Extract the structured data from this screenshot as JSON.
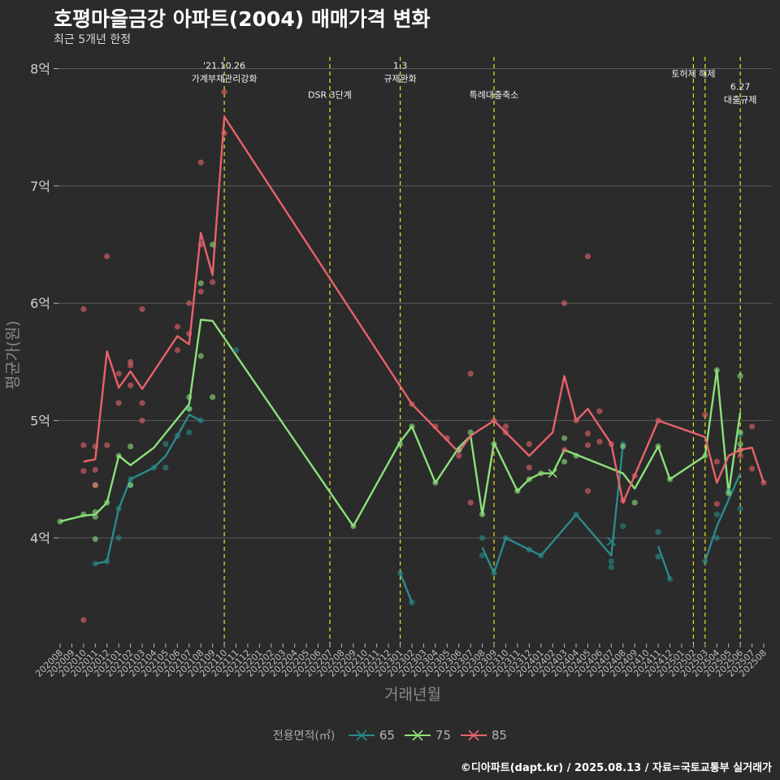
{
  "title": "호평마을금강 아파트(2004) 매매가격 변화",
  "subtitle": "최근 5개년 한정",
  "caption": "©디아파트(dapt.kr) / 2025.08.13 / 자료=국토교통부 실거래가",
  "legend": {
    "title": "전용면적(㎡)",
    "items": [
      {
        "label": "65",
        "color": "#2a8a8a"
      },
      {
        "label": "75",
        "color": "#8ce07a"
      },
      {
        "label": "85",
        "color": "#e8626a"
      }
    ]
  },
  "chart_data": {
    "type": "line",
    "xlabel": "거래년월",
    "ylabel": "평균가(원)",
    "ylim": [
      3.1,
      8.1
    ],
    "yticks": [
      4,
      5,
      6,
      7,
      8
    ],
    "ytick_labels": [
      "4억",
      "5억",
      "6억",
      "7억",
      "8억"
    ],
    "grid": true,
    "legend_position": "bottom",
    "x": [
      "202008",
      "202009",
      "202010",
      "202011",
      "202012",
      "202101",
      "202102",
      "202103",
      "202104",
      "202105",
      "202106",
      "202107",
      "202108",
      "202109",
      "202110",
      "202111",
      "202112",
      "202201",
      "202202",
      "202203",
      "202204",
      "202205",
      "202206",
      "202207",
      "202208",
      "202209",
      "202210",
      "202211",
      "202212",
      "202301",
      "202302",
      "202303",
      "202304",
      "202305",
      "202306",
      "202307",
      "202308",
      "202309",
      "202310",
      "202311",
      "202312",
      "202401",
      "202402",
      "202403",
      "202404",
      "202405",
      "202406",
      "202407",
      "202408",
      "202409",
      "202410",
      "202411",
      "202412",
      "202501",
      "202502",
      "202503",
      "202504",
      "202505",
      "202506",
      "202507",
      "202508"
    ],
    "events": [
      {
        "x": "202110",
        "label": "'21.10.26\n가계부채관리강화",
        "label_y": 8.0
      },
      {
        "x": "202207",
        "label": "DSR 3단계",
        "label_y": 7.75
      },
      {
        "x": "202301",
        "label": "1.3\n규제완화",
        "label_y": 8.0
      },
      {
        "x": "202309",
        "label": "특례대출축소",
        "label_y": 7.75
      },
      {
        "x": "202502",
        "label": "토허제 해제",
        "label_y": 7.93
      },
      {
        "x": "202503",
        "label": "",
        "label_y": 7.93
      },
      {
        "x": "202506",
        "label": "6.27\n대출규제",
        "label_y": 7.82
      }
    ],
    "series": [
      {
        "name": "65",
        "color": "#2a8a8a",
        "line": [
          [
            [
              "202011",
              3.78
            ],
            [
              "202012",
              3.8
            ],
            [
              "202101",
              4.25
            ],
            [
              "202102",
              4.5
            ],
            [
              "202104",
              4.6
            ],
            [
              "202105",
              4.7
            ],
            [
              "202106",
              4.87
            ],
            [
              "202107",
              5.05
            ],
            [
              "202108",
              5.0
            ]
          ],
          [
            [
              "202301",
              3.7
            ],
            [
              "202302",
              3.45
            ]
          ],
          [
            [
              "202308",
              3.92
            ],
            [
              "202309",
              3.7
            ],
            [
              "202310",
              4.0
            ],
            [
              "202312",
              3.9
            ],
            [
              "202401",
              3.85
            ],
            [
              "202404",
              4.2
            ],
            [
              "202407",
              3.85
            ],
            [
              "202408",
              4.8
            ]
          ],
          [
            [
              "202411",
              3.93
            ],
            [
              "202412",
              3.65
            ]
          ],
          [
            [
              "202503",
              3.8
            ],
            [
              "202504",
              4.1
            ],
            [
              "202506",
              4.55
            ]
          ]
        ],
        "points": [
          [
            "202011",
            3.78
          ],
          [
            "202012",
            3.8
          ],
          [
            "202101",
            4.0
          ],
          [
            "202101",
            4.25
          ],
          [
            "202102",
            4.45
          ],
          [
            "202102",
            4.5
          ],
          [
            "202104",
            4.6
          ],
          [
            "202105",
            4.8
          ],
          [
            "202105",
            4.6
          ],
          [
            "202106",
            4.87
          ],
          [
            "202107",
            5.1
          ],
          [
            "202107",
            4.9
          ],
          [
            "202108",
            5.0
          ],
          [
            "202111",
            5.6
          ],
          [
            "202301",
            3.7
          ],
          [
            "202302",
            3.45
          ],
          [
            "202308",
            4.0
          ],
          [
            "202308",
            3.85
          ],
          [
            "202309",
            3.7
          ],
          [
            "202310",
            4.0
          ],
          [
            "202312",
            3.9
          ],
          [
            "202401",
            3.85
          ],
          [
            "202404",
            4.2
          ],
          [
            "202407",
            3.8
          ],
          [
            "202407",
            3.75
          ],
          [
            "202408",
            4.1
          ],
          [
            "202408",
            4.8
          ],
          [
            "202411",
            3.84
          ],
          [
            "202411",
            4.05
          ],
          [
            "202412",
            3.65
          ],
          [
            "202503",
            3.8
          ],
          [
            "202504",
            4.0
          ],
          [
            "202504",
            4.2
          ],
          [
            "202506",
            4.25
          ],
          [
            "202506",
            4.88
          ],
          [
            "202505",
            4.4
          ]
        ],
        "markers": [
          [
            "202407",
            3.97
          ]
        ]
      },
      {
        "name": "75",
        "color": "#8ce07a",
        "line": [
          [
            [
              "202008",
              4.14
            ],
            [
              "202010",
              4.19
            ],
            [
              "202011",
              4.2
            ],
            [
              "202012",
              4.3
            ],
            [
              "202101",
              4.7
            ],
            [
              "202102",
              4.62
            ],
            [
              "202104",
              4.77
            ],
            [
              "202107",
              5.14
            ],
            [
              "202108",
              5.86
            ],
            [
              "202109",
              5.85
            ],
            [
              "202209",
              4.1
            ],
            [
              "202301",
              4.82
            ],
            [
              "202302",
              4.95
            ],
            [
              "202304",
              4.47
            ],
            [
              "202306",
              4.77
            ],
            [
              "202307",
              4.87
            ],
            [
              "202308",
              4.2
            ],
            [
              "202309",
              4.81
            ],
            [
              "202311",
              4.4
            ],
            [
              "202312",
              4.5
            ],
            [
              "202401",
              4.55
            ],
            [
              "202402",
              4.55
            ],
            [
              "202403",
              4.75
            ],
            [
              "202408",
              4.55
            ],
            [
              "202409",
              4.42
            ],
            [
              "202411",
              4.78
            ],
            [
              "202412",
              4.5
            ],
            [
              "202503",
              4.7
            ],
            [
              "202504",
              5.43
            ],
            [
              "202505",
              4.38
            ],
            [
              "202506",
              5.07
            ]
          ]
        ],
        "points": [
          [
            "202008",
            4.14
          ],
          [
            "202010",
            4.2
          ],
          [
            "202011",
            4.22
          ],
          [
            "202011",
            4.18
          ],
          [
            "202011",
            4.45
          ],
          [
            "202011",
            3.99
          ],
          [
            "202012",
            4.3
          ],
          [
            "202101",
            4.7
          ],
          [
            "202102",
            4.78
          ],
          [
            "202102",
            4.45
          ],
          [
            "202107",
            5.2
          ],
          [
            "202107",
            5.1
          ],
          [
            "202108",
            5.55
          ],
          [
            "202108",
            6.17
          ],
          [
            "202109",
            6.5
          ],
          [
            "202109",
            5.2
          ],
          [
            "202209",
            4.1
          ],
          [
            "202301",
            4.8
          ],
          [
            "202302",
            4.95
          ],
          [
            "202304",
            4.47
          ],
          [
            "202306",
            4.75
          ],
          [
            "202307",
            4.9
          ],
          [
            "202308",
            4.2
          ],
          [
            "202309",
            4.8
          ],
          [
            "202311",
            4.4
          ],
          [
            "202312",
            4.5
          ],
          [
            "202401",
            4.55
          ],
          [
            "202403",
            4.65
          ],
          [
            "202403",
            4.85
          ],
          [
            "202404",
            4.7
          ],
          [
            "202408",
            4.78
          ],
          [
            "202409",
            4.3
          ],
          [
            "202411",
            4.78
          ],
          [
            "202412",
            4.5
          ],
          [
            "202503",
            4.7
          ],
          [
            "202504",
            5.43
          ],
          [
            "202505",
            4.38
          ],
          [
            "202506",
            5.38
          ],
          [
            "202506",
            4.8
          ],
          [
            "202506",
            4.75
          ],
          [
            "202506",
            4.9
          ]
        ],
        "markers": [
          [
            "202402",
            4.55
          ]
        ]
      },
      {
        "name": "85",
        "color": "#e8626a",
        "line": [
          [
            [
              "202010",
              4.65
            ],
            [
              "202011",
              4.67
            ],
            [
              "202012",
              5.59
            ],
            [
              "202101",
              5.28
            ],
            [
              "202102",
              5.42
            ],
            [
              "202103",
              5.27
            ],
            [
              "202106",
              5.72
            ],
            [
              "202107",
              5.65
            ],
            [
              "202108",
              6.6
            ],
            [
              "202109",
              6.24
            ],
            [
              "202110",
              7.59
            ],
            [
              "202302",
              5.14
            ],
            [
              "202306",
              4.73
            ],
            [
              "202307",
              4.87
            ],
            [
              "202309",
              5.0
            ],
            [
              "202312",
              4.7
            ],
            [
              "202402",
              4.9
            ],
            [
              "202403",
              5.38
            ],
            [
              "202404",
              5.0
            ],
            [
              "202405",
              5.1
            ],
            [
              "202407",
              4.8
            ],
            [
              "202408",
              4.3
            ],
            [
              "202411",
              5.0
            ],
            [
              "202503",
              4.86
            ],
            [
              "202504",
              4.47
            ],
            [
              "202505",
              4.7
            ],
            [
              "202506",
              4.75
            ],
            [
              "202507",
              4.77
            ],
            [
              "202508",
              4.47
            ]
          ]
        ],
        "points": [
          [
            "202010",
            5.95
          ],
          [
            "202010",
            4.79
          ],
          [
            "202010",
            4.57
          ],
          [
            "202010",
            3.3
          ],
          [
            "202011",
            4.78
          ],
          [
            "202011",
            4.58
          ],
          [
            "202011",
            4.45
          ],
          [
            "202012",
            6.4
          ],
          [
            "202012",
            4.79
          ],
          [
            "202101",
            5.4
          ],
          [
            "202101",
            5.15
          ],
          [
            "202102",
            5.5
          ],
          [
            "202102",
            5.47
          ],
          [
            "202102",
            5.3
          ],
          [
            "202103",
            5.95
          ],
          [
            "202103",
            5.15
          ],
          [
            "202103",
            5.0
          ],
          [
            "202106",
            5.8
          ],
          [
            "202106",
            5.6
          ],
          [
            "202107",
            6.0
          ],
          [
            "202107",
            5.74
          ],
          [
            "202108",
            7.2
          ],
          [
            "202108",
            6.5
          ],
          [
            "202108",
            6.1
          ],
          [
            "202109",
            6.18
          ],
          [
            "202110",
            7.8
          ],
          [
            "202110",
            7.45
          ],
          [
            "202302",
            5.14
          ],
          [
            "202304",
            4.95
          ],
          [
            "202305",
            4.85
          ],
          [
            "202306",
            4.7
          ],
          [
            "202307",
            5.4
          ],
          [
            "202307",
            4.3
          ],
          [
            "202309",
            5.0
          ],
          [
            "202310",
            4.95
          ],
          [
            "202310",
            4.9
          ],
          [
            "202312",
            4.8
          ],
          [
            "202312",
            4.6
          ],
          [
            "202403",
            6.0
          ],
          [
            "202403",
            4.75
          ],
          [
            "202404",
            5.0
          ],
          [
            "202405",
            6.4
          ],
          [
            "202405",
            4.89
          ],
          [
            "202405",
            4.79
          ],
          [
            "202405",
            4.4
          ],
          [
            "202406",
            5.08
          ],
          [
            "202406",
            4.82
          ],
          [
            "202407",
            4.8
          ],
          [
            "202408",
            4.32
          ],
          [
            "202409",
            4.53
          ],
          [
            "202411",
            5.0
          ],
          [
            "202503",
            5.05
          ],
          [
            "202504",
            4.65
          ],
          [
            "202504",
            4.29
          ],
          [
            "202506",
            4.7
          ],
          [
            "202506",
            4.75
          ],
          [
            "202507",
            4.95
          ],
          [
            "202507",
            4.59
          ],
          [
            "202508",
            4.47
          ]
        ],
        "markers": []
      }
    ]
  }
}
